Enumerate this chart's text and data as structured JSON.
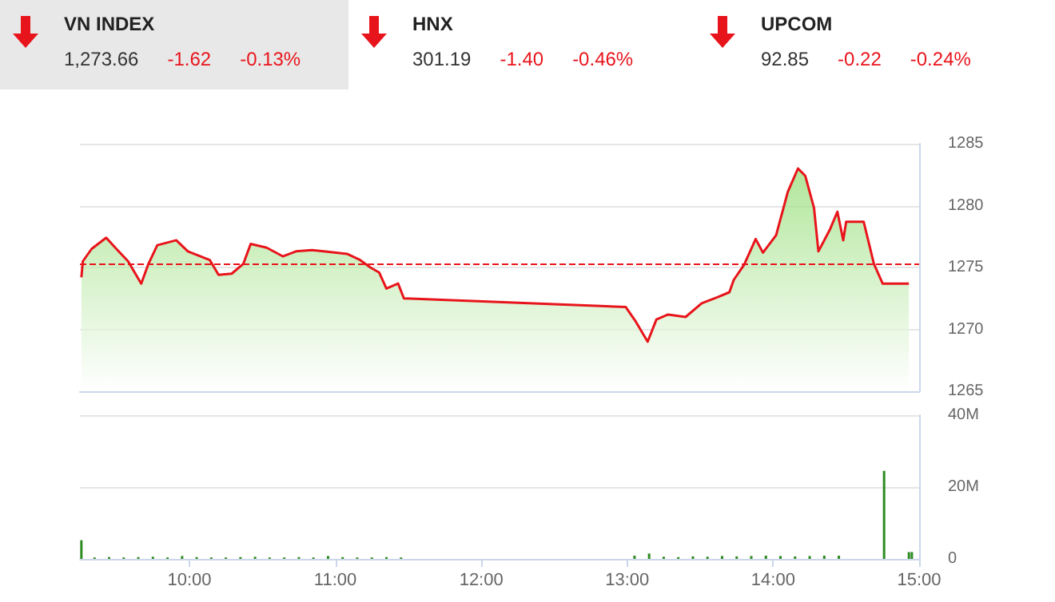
{
  "chart_data": [
    {
      "type": "other",
      "annotations": [
        "VN INDEX",
        "1,273.66",
        "-1.62",
        "-0.13%",
        "HNX",
        "301.19",
        "-1.40",
        "-0.46%",
        "UPCOM",
        "92.85",
        "-0.22",
        "-0.24%"
      ]
    },
    {
      "type": "area",
      "xlim": [
        9.25,
        15
      ],
      "ylim": [
        1265,
        1285
      ],
      "yticks": [
        1265,
        1270,
        1275,
        1280,
        1285
      ],
      "grid": "y",
      "tick_labels": "y",
      "marker": "none",
      "series": [
        {
          "color": "#90dc70",
          "x": [
            9.26,
            9.27,
            9.33,
            9.43,
            9.5,
            9.58,
            9.67,
            9.72,
            9.78,
            9.91,
            9.99,
            10.14,
            10.2,
            10.29,
            10.37,
            10.42,
            10.53,
            10.64,
            10.73,
            10.84,
            10.92,
            11.08,
            11.17,
            11.24,
            11.3,
            11.35,
            11.43,
            11.47,
            12.99,
            13.06,
            13.14,
            13.2,
            13.28,
            13.4,
            13.51,
            13.62,
            13.7,
            13.73,
            13.8,
            13.88,
            13.93,
            14.02,
            14.1,
            14.17,
            14.22,
            14.28,
            14.31,
            14.39,
            14.44,
            14.48,
            14.5,
            14.62,
            14.69,
            14.75,
            14.93
          ],
          "values": [
            1274.2,
            1275.5,
            1276.5,
            1277.4,
            1276.5,
            1275.5,
            1273.7,
            1275.3,
            1276.8,
            1277.2,
            1276.3,
            1275.6,
            1274.4,
            1274.5,
            1275.3,
            1276.9,
            1276.6,
            1275.9,
            1276.3,
            1276.4,
            1276.3,
            1276.1,
            1275.6,
            1275.0,
            1274.6,
            1273.3,
            1273.7,
            1272.5,
            1271.8,
            1270.6,
            1269.0,
            1270.8,
            1271.2,
            1271.0,
            1272.1,
            1272.6,
            1273.0,
            1274.0,
            1275.2,
            1277.3,
            1276.2,
            1277.6,
            1281.1,
            1283.0,
            1282.4,
            1279.8,
            1276.3,
            1278.1,
            1279.5,
            1277.2,
            1278.7,
            1278.7,
            1275.3,
            1273.7,
            1273.7
          ]
        }
      ],
      "ref_lines": [
        {
          "axis": "y",
          "value": 1275.3,
          "color": "#e8141b",
          "line_style": "dashed"
        }
      ]
    },
    {
      "type": "bar",
      "xlim": [
        9.25,
        15
      ],
      "xticks": [
        {
          "value": 10,
          "label": "10:00"
        },
        {
          "value": 11,
          "label": "11:00"
        },
        {
          "value": 12,
          "label": "12:00"
        },
        {
          "value": 13,
          "label": "13:00"
        },
        {
          "value": 14,
          "label": "14:00"
        },
        {
          "value": 15,
          "label": "15:00"
        }
      ],
      "ylim": [
        0,
        40
      ],
      "yticks": [
        {
          "value": 0,
          "label": "0"
        },
        {
          "value": 20,
          "label": "20M"
        },
        {
          "value": 40,
          "label": "40M"
        }
      ],
      "grid": "y",
      "series": [
        {
          "color": "#2e8b22",
          "x": [
            9.26,
            9.35,
            9.45,
            9.55,
            9.65,
            9.75,
            9.85,
            9.95,
            10.05,
            10.15,
            10.25,
            10.35,
            10.45,
            10.55,
            10.65,
            10.75,
            10.85,
            10.95,
            11.05,
            11.15,
            11.25,
            11.35,
            11.45,
            13.05,
            13.15,
            13.25,
            13.35,
            13.45,
            13.55,
            13.65,
            13.75,
            13.85,
            13.95,
            14.05,
            14.15,
            14.25,
            14.35,
            14.45,
            14.76,
            14.93,
            14.95
          ],
          "values": [
            5.2,
            0.4,
            0.5,
            0.4,
            0.5,
            0.6,
            0.4,
            0.8,
            0.5,
            0.4,
            0.4,
            0.5,
            0.6,
            0.4,
            0.4,
            0.5,
            0.4,
            0.8,
            0.5,
            0.4,
            0.4,
            0.5,
            0.4,
            0.9,
            1.5,
            0.6,
            0.5,
            0.7,
            0.6,
            0.8,
            0.7,
            0.8,
            0.9,
            0.8,
            0.7,
            0.8,
            0.9,
            0.9,
            24.5,
            1.9,
            1.9
          ]
        }
      ]
    }
  ]
}
